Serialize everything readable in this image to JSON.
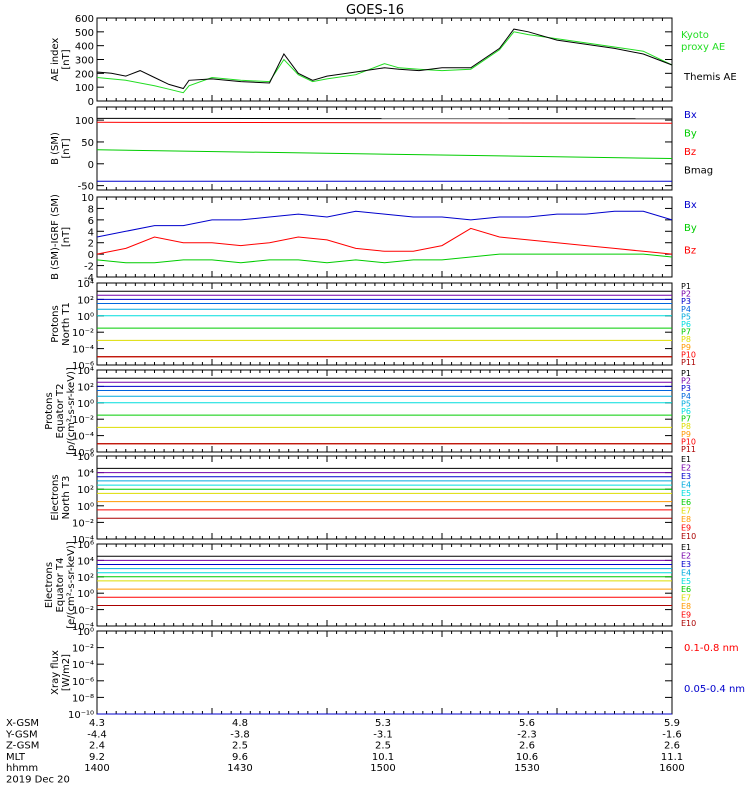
{
  "title": "GOES-16",
  "date_label": "2019 Dec 20",
  "colors": {
    "black": "#000000",
    "green": "#22dd22",
    "blue": "#0000cc",
    "red": "#ff0000",
    "bx": "#0000cc",
    "by": "#00cc00",
    "bz": "#ff0000",
    "bmag": "#000000"
  },
  "ephemeris": {
    "rows": [
      {
        "label": "X-GSM",
        "values": [
          "4.3",
          "4.8",
          "5.3",
          "5.6",
          "5.9"
        ]
      },
      {
        "label": "Y-GSM",
        "values": [
          "-4.4",
          "-3.8",
          "-3.1",
          "-2.3",
          "-1.6"
        ]
      },
      {
        "label": "Z-GSM",
        "values": [
          "2.4",
          "2.5",
          "2.5",
          "2.6",
          "2.6"
        ]
      },
      {
        "label": "MLT",
        "values": [
          "9.2",
          "9.6",
          "10.1",
          "10.6",
          "11.1"
        ]
      },
      {
        "label": "hhmm",
        "values": [
          "1400",
          "1430",
          "1500",
          "1530",
          "1600"
        ]
      }
    ]
  },
  "chart_data": [
    {
      "type": "line",
      "ylabel": [
        "AE index",
        "[nT]"
      ],
      "ylim": [
        0,
        600
      ],
      "yticks": [
        "0",
        "100",
        "200",
        "300",
        "400",
        "500",
        "600"
      ],
      "tick_values": [
        0,
        100,
        200,
        300,
        400,
        500,
        600
      ],
      "xlim": [
        1400,
        1600
      ],
      "series": [
        {
          "name": "Kyoto proxy AE",
          "legend": [
            "Kyoto",
            "proxy AE"
          ],
          "color": "#22dd22",
          "x": [
            1400,
            1410,
            1420,
            1425,
            1430,
            1432,
            1440,
            1450,
            1460,
            1465,
            1470,
            1475,
            1480,
            1490,
            1500,
            1505,
            1512,
            1520,
            1530,
            1540,
            1545,
            1550,
            1560,
            1570,
            1580,
            1590,
            1600
          ],
          "y": [
            170,
            150,
            110,
            85,
            60,
            110,
            170,
            150,
            140,
            300,
            190,
            140,
            160,
            190,
            270,
            240,
            230,
            220,
            230,
            370,
            500,
            480,
            450,
            420,
            390,
            360,
            260
          ]
        },
        {
          "name": "Themis AE",
          "legend": [
            "Themis AE"
          ],
          "color": "#000000",
          "x": [
            1400,
            1405,
            1410,
            1415,
            1420,
            1425,
            1430,
            1432,
            1440,
            1450,
            1460,
            1465,
            1470,
            1475,
            1480,
            1490,
            1500,
            1505,
            1512,
            1520,
            1530,
            1540,
            1545,
            1550,
            1560,
            1570,
            1580,
            1590,
            1600
          ],
          "y": [
            210,
            200,
            180,
            220,
            170,
            120,
            90,
            150,
            160,
            140,
            130,
            340,
            200,
            150,
            180,
            210,
            240,
            230,
            220,
            240,
            240,
            380,
            520,
            500,
            440,
            410,
            380,
            340,
            260
          ]
        }
      ]
    },
    {
      "type": "line",
      "ylabel": [
        "B (SM)",
        "[nT]"
      ],
      "ylim": [
        -60,
        130
      ],
      "yticks": [
        "-50",
        "0",
        "50",
        "100"
      ],
      "tick_values": [
        -50,
        0,
        50,
        100
      ],
      "xlim": [
        1400,
        1600
      ],
      "series": [
        {
          "name": "Bx",
          "color": "#0000cc",
          "x": [
            1400,
            1600
          ],
          "y": [
            -40,
            -40
          ]
        },
        {
          "name": "By",
          "color": "#00cc00",
          "x": [
            1400,
            1600
          ],
          "y": [
            32,
            12
          ]
        },
        {
          "name": "Bz",
          "color": "#ff0000",
          "x": [
            1400,
            1600
          ],
          "y": [
            95,
            93
          ]
        },
        {
          "name": "Bmag",
          "color": "#000000",
          "x": [
            1400,
            1600
          ],
          "y": [
            104,
            103
          ]
        }
      ]
    },
    {
      "type": "line",
      "ylabel": [
        "B (SM)-IGRF (SM)",
        "[nT]"
      ],
      "ylim": [
        -4,
        10
      ],
      "yticks": [
        "-4",
        "-2",
        "0",
        "2",
        "4",
        "6",
        "8",
        "10"
      ],
      "tick_values": [
        -4,
        -2,
        0,
        2,
        4,
        6,
        8,
        10
      ],
      "xlim": [
        1400,
        1600
      ],
      "series": [
        {
          "name": "Bx",
          "color": "#0000cc",
          "x": [
            1400,
            1410,
            1420,
            1430,
            1440,
            1450,
            1460,
            1470,
            1480,
            1490,
            1500,
            1510,
            1520,
            1530,
            1540,
            1550,
            1560,
            1570,
            1580,
            1590,
            1600
          ],
          "y": [
            3,
            4,
            5,
            5,
            6,
            6,
            6.5,
            7,
            6.5,
            7.5,
            7,
            6.5,
            6.5,
            6,
            6.5,
            6.5,
            7,
            7,
            7.5,
            7.5,
            6
          ]
        },
        {
          "name": "By",
          "color": "#00cc00",
          "x": [
            1400,
            1410,
            1420,
            1430,
            1440,
            1450,
            1460,
            1470,
            1480,
            1490,
            1500,
            1510,
            1520,
            1530,
            1540,
            1550,
            1560,
            1570,
            1580,
            1590,
            1600
          ],
          "y": [
            -1,
            -1.5,
            -1.5,
            -1,
            -1,
            -1.5,
            -1,
            -1,
            -1.5,
            -1,
            -1.5,
            -1,
            -1,
            -0.5,
            0,
            0,
            0,
            0,
            0,
            0,
            -0.5
          ]
        },
        {
          "name": "Bz",
          "color": "#ff0000",
          "x": [
            1400,
            1410,
            1420,
            1430,
            1440,
            1450,
            1460,
            1470,
            1480,
            1490,
            1500,
            1510,
            1520,
            1530,
            1540,
            1550,
            1560,
            1570,
            1580,
            1590,
            1600
          ],
          "y": [
            0,
            1,
            3,
            2,
            2,
            1.5,
            2,
            3,
            2.5,
            1,
            0.5,
            0.5,
            1.5,
            4.5,
            3,
            2.5,
            2,
            1.5,
            1,
            0.5,
            0
          ]
        }
      ]
    },
    {
      "type": "line",
      "ylabel": [
        "Protons",
        "North T1"
      ],
      "yscale": "log",
      "ylim": [
        -6,
        4
      ],
      "yticks": [
        "10⁻⁶",
        "10⁻⁴",
        "10⁻²",
        "10⁰",
        "10²",
        "10⁴"
      ],
      "tick_values": [
        -6,
        -4,
        -2,
        0,
        2,
        4
      ],
      "xlim": [
        1400,
        1600
      ],
      "series": [
        {
          "name": "P1",
          "color": "#000000",
          "x": [
            1400,
            1600
          ],
          "y": [
            3,
            3
          ]
        },
        {
          "name": "P2",
          "color": "#7700aa",
          "x": [
            1400,
            1600
          ],
          "y": [
            2.5,
            2.5
          ]
        },
        {
          "name": "P3",
          "color": "#0000cc",
          "x": [
            1400,
            1600
          ],
          "y": [
            2,
            2
          ]
        },
        {
          "name": "P4",
          "color": "#0066dd",
          "x": [
            1400,
            1600
          ],
          "y": [
            1.5,
            1.5
          ]
        },
        {
          "name": "P5",
          "color": "#00aadd",
          "x": [
            1400,
            1600
          ],
          "y": [
            0.8,
            0.8
          ]
        },
        {
          "name": "P6",
          "color": "#00dddd",
          "x": [
            1400,
            1600
          ],
          "y": [
            0,
            0
          ]
        },
        {
          "name": "P7",
          "color": "#00cc00",
          "x": [
            1400,
            1600
          ],
          "y": [
            -1.5,
            -1.5
          ]
        },
        {
          "name": "P8",
          "color": "#dddd00",
          "x": [
            1400,
            1600
          ],
          "y": [
            -3,
            -3
          ]
        },
        {
          "name": "P9",
          "color": "#ff9900",
          "x": [
            1400,
            1600
          ],
          "y": [
            -5,
            -5
          ]
        },
        {
          "name": "P10",
          "color": "#ff0000",
          "x": [
            1400,
            1600
          ],
          "y": [
            -5,
            -5
          ]
        },
        {
          "name": "P11",
          "color": "#aa0000",
          "x": [
            1400,
            1600
          ],
          "y": [
            -5,
            -5
          ]
        }
      ]
    },
    {
      "type": "line",
      "ylabel": [
        "Protons",
        "Equator T2",
        "[p/(cm²-s-sr-keV)]"
      ],
      "yscale": "log",
      "ylim": [
        -6,
        4
      ],
      "yticks": [
        "10⁻⁶",
        "10⁻⁴",
        "10⁻²",
        "10⁰",
        "10²",
        "10⁴"
      ],
      "tick_values": [
        -6,
        -4,
        -2,
        0,
        2,
        4
      ],
      "xlim": [
        1400,
        1600
      ],
      "series": [
        {
          "name": "P1",
          "color": "#000000",
          "x": [
            1400,
            1600
          ],
          "y": [
            3,
            3
          ]
        },
        {
          "name": "P2",
          "color": "#7700aa",
          "x": [
            1400,
            1600
          ],
          "y": [
            2.5,
            2.5
          ]
        },
        {
          "name": "P3",
          "color": "#0000cc",
          "x": [
            1400,
            1600
          ],
          "y": [
            2,
            2
          ]
        },
        {
          "name": "P4",
          "color": "#0066dd",
          "x": [
            1400,
            1600
          ],
          "y": [
            1.5,
            1.5
          ]
        },
        {
          "name": "P5",
          "color": "#00aadd",
          "x": [
            1400,
            1600
          ],
          "y": [
            0.8,
            0.8
          ]
        },
        {
          "name": "P6",
          "color": "#00dddd",
          "x": [
            1400,
            1600
          ],
          "y": [
            0,
            0
          ]
        },
        {
          "name": "P7",
          "color": "#00cc00",
          "x": [
            1400,
            1600
          ],
          "y": [
            -1.5,
            -1.5
          ]
        },
        {
          "name": "P8",
          "color": "#dddd00",
          "x": [
            1400,
            1600
          ],
          "y": [
            -3,
            -3
          ]
        },
        {
          "name": "P9",
          "color": "#ff9900",
          "x": [
            1400,
            1600
          ],
          "y": [
            -5,
            -5
          ]
        },
        {
          "name": "P10",
          "color": "#ff0000",
          "x": [
            1400,
            1600
          ],
          "y": [
            -5,
            -5
          ]
        },
        {
          "name": "P11",
          "color": "#aa0000",
          "x": [
            1400,
            1600
          ],
          "y": [
            -5,
            -5
          ]
        }
      ]
    },
    {
      "type": "line",
      "ylabel": [
        "Electrons",
        "North T3"
      ],
      "yscale": "log",
      "ylim": [
        -4,
        6
      ],
      "yticks": [
        "10⁻⁴",
        "10⁻²",
        "10⁰",
        "10²",
        "10⁴",
        "10⁶"
      ],
      "tick_values": [
        -4,
        -2,
        0,
        2,
        4,
        6
      ],
      "xlim": [
        1400,
        1600
      ],
      "series": [
        {
          "name": "E1",
          "color": "#000000",
          "x": [
            1400,
            1600
          ],
          "y": [
            4.5,
            4.5
          ]
        },
        {
          "name": "E2",
          "color": "#7700aa",
          "x": [
            1400,
            1600
          ],
          "y": [
            4,
            4
          ]
        },
        {
          "name": "E3",
          "color": "#0000cc",
          "x": [
            1400,
            1600
          ],
          "y": [
            3.5,
            3.5
          ]
        },
        {
          "name": "E4",
          "color": "#00aadd",
          "x": [
            1400,
            1600
          ],
          "y": [
            3,
            3
          ]
        },
        {
          "name": "E5",
          "color": "#00dddd",
          "x": [
            1400,
            1600
          ],
          "y": [
            2.5,
            2.5
          ]
        },
        {
          "name": "E6",
          "color": "#00cc00",
          "x": [
            1400,
            1600
          ],
          "y": [
            2,
            2
          ]
        },
        {
          "name": "E7",
          "color": "#dddd00",
          "x": [
            1400,
            1600
          ],
          "y": [
            1.5,
            1.5
          ]
        },
        {
          "name": "E8",
          "color": "#ff9900",
          "x": [
            1400,
            1600
          ],
          "y": [
            0.5,
            0.5
          ]
        },
        {
          "name": "E9",
          "color": "#ff0000",
          "x": [
            1400,
            1600
          ],
          "y": [
            -0.5,
            -0.5
          ]
        },
        {
          "name": "E10",
          "color": "#aa0000",
          "x": [
            1400,
            1600
          ],
          "y": [
            -1.5,
            -1.5
          ]
        }
      ]
    },
    {
      "type": "line",
      "ylabel": [
        "Electrons",
        "Equator T4",
        "[e/(cm²-s-sr-keV)]"
      ],
      "yscale": "log",
      "ylim": [
        -4,
        6
      ],
      "yticks": [
        "10⁻⁴",
        "10⁻²",
        "10⁰",
        "10²",
        "10⁴",
        "10⁶"
      ],
      "tick_values": [
        -4,
        -2,
        0,
        2,
        4,
        6
      ],
      "xlim": [
        1400,
        1600
      ],
      "series": [
        {
          "name": "E1",
          "color": "#000000",
          "x": [
            1400,
            1600
          ],
          "y": [
            4.5,
            4.5
          ]
        },
        {
          "name": "E2",
          "color": "#7700aa",
          "x": [
            1400,
            1600
          ],
          "y": [
            4,
            4
          ]
        },
        {
          "name": "E3",
          "color": "#0000cc",
          "x": [
            1400,
            1600
          ],
          "y": [
            3.5,
            3.5
          ]
        },
        {
          "name": "E4",
          "color": "#00aadd",
          "x": [
            1400,
            1600
          ],
          "y": [
            3,
            3
          ]
        },
        {
          "name": "E5",
          "color": "#00dddd",
          "x": [
            1400,
            1600
          ],
          "y": [
            2.5,
            2.5
          ]
        },
        {
          "name": "E6",
          "color": "#00cc00",
          "x": [
            1400,
            1600
          ],
          "y": [
            2,
            2
          ]
        },
        {
          "name": "E7",
          "color": "#dddd00",
          "x": [
            1400,
            1600
          ],
          "y": [
            1.5,
            1.5
          ]
        },
        {
          "name": "E8",
          "color": "#ff9900",
          "x": [
            1400,
            1600
          ],
          "y": [
            0.5,
            0.5
          ]
        },
        {
          "name": "E9",
          "color": "#ff0000",
          "x": [
            1400,
            1600
          ],
          "y": [
            -0.5,
            -0.5
          ]
        },
        {
          "name": "E10",
          "color": "#aa0000",
          "x": [
            1400,
            1600
          ],
          "y": [
            -1.5,
            -1.5
          ]
        }
      ]
    },
    {
      "type": "line",
      "ylabel": [
        "Xray flux",
        "[W/m2]"
      ],
      "yscale": "log",
      "ylim": [
        -10,
        0
      ],
      "yticks": [
        "10⁻¹⁰",
        "10⁻⁸",
        "10⁻⁶",
        "10⁻⁴",
        "10⁻²",
        "10⁰"
      ],
      "tick_values": [
        -10,
        -8,
        -6,
        -4,
        -2,
        0
      ],
      "xlim": [
        1400,
        1600
      ],
      "series": [
        {
          "name": "0.1-0.8 nm",
          "color": "#ff0000",
          "x": [
            1400,
            1600
          ],
          "y": [
            -10,
            -10
          ]
        },
        {
          "name": "0.05-0.4 nm",
          "color": "#0000cc",
          "x": [
            1400,
            1600
          ],
          "y": [
            -10,
            -10
          ]
        }
      ]
    }
  ]
}
